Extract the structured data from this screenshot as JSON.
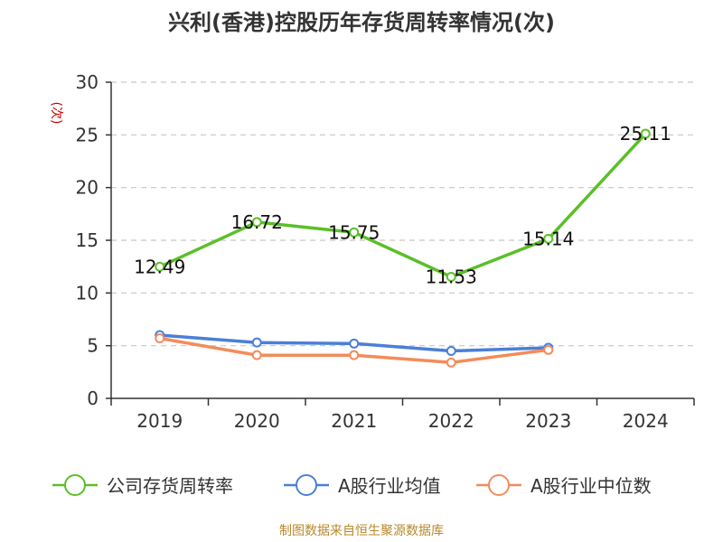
{
  "chart_data": {
    "type": "line",
    "title": "兴利(香港)控股历年存货周转率情况(次)",
    "unit_label": "(次)",
    "categories": [
      "2019",
      "2020",
      "2021",
      "2022",
      "2023",
      "2024"
    ],
    "ylim": [
      0,
      30
    ],
    "yticks": [
      0,
      5,
      10,
      15,
      20,
      25,
      30
    ],
    "grid": true,
    "legend_position": "bottom",
    "series": [
      {
        "name": "公司存货周转率",
        "color": "#5bbf28",
        "values": [
          12.49,
          16.72,
          15.75,
          11.53,
          15.14,
          25.11
        ],
        "labels": [
          "12.49",
          "16.72",
          "15.75",
          "11.53",
          "15.14",
          "25.11"
        ],
        "show_labels": true
      },
      {
        "name": "A股行业均值",
        "color": "#4a7fd8",
        "values": [
          6.0,
          5.3,
          5.2,
          4.5,
          4.8,
          null
        ],
        "show_labels": false
      },
      {
        "name": "A股行业中位数",
        "color": "#f28c5a",
        "values": [
          5.7,
          4.1,
          4.1,
          3.4,
          4.6,
          null
        ],
        "show_labels": false
      }
    ]
  },
  "source": "制图数据来自恒生聚源数据库"
}
